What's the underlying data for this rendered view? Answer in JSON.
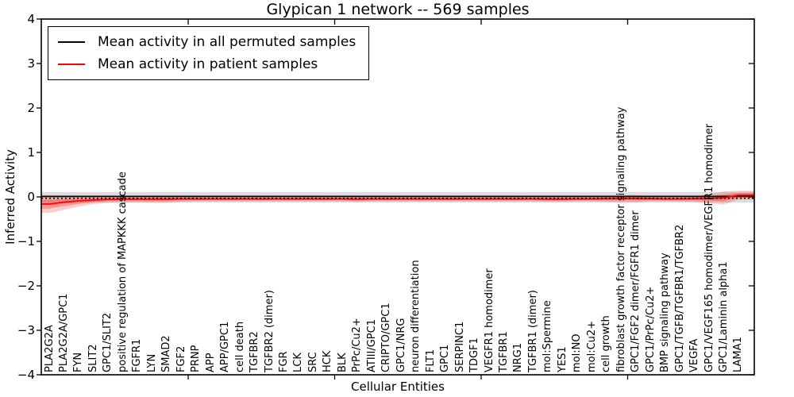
{
  "title": "Glypican 1 network -- 569 samples",
  "chart_data": {
    "type": "line",
    "title": "Glypican 1 network -- 569 samples",
    "xlabel": "Cellular Entities",
    "ylabel": "Inferred Activity",
    "ylim": [
      -4,
      4
    ],
    "yticks": [
      -4,
      -3,
      -2,
      -1,
      0,
      1,
      2,
      3,
      4
    ],
    "grid": false,
    "legend_position": "upper left",
    "categories": [
      "PLA2G2A",
      "PLA2G2A/GPC1",
      "FYN",
      "SLIT2",
      "GPC1/SLIT2",
      "positive regulation of MAPKKK cascade",
      "FGFR1",
      "LYN",
      "SMAD2",
      "FGF2",
      "PRNP",
      "APP",
      "APP/GPC1",
      "cell death",
      "TGFBR2",
      "TGFBR2 (dimer)",
      "FGR",
      "LCK",
      "SRC",
      "HCK",
      "BLK",
      "PrPc/Cu2+",
      "ATIII/GPC1",
      "CRIPTO/GPC1",
      "GPC1/NRG",
      "neuron differentiation",
      "FLT1",
      "GPC1",
      "SERPINC1",
      "TDGF1",
      "VEGFR1 homodimer",
      "TGFBR1",
      "NRG1",
      "TGFBR1 (dimer)",
      "mol:Spermine",
      "YES1",
      "mol:NO",
      "mol:Cu2+",
      "cell growth",
      "fibroblast growth factor receptor signaling pathway",
      "GPC1/FGF2 dimer/FGFR1 dimer",
      "GPC1/PrPc/Cu2+",
      "BMP signaling pathway",
      "GPC1/TGFB/TGFBR1/TGFBR2",
      "VEGFA",
      "GPC1/VEGF165 homodimer/VEGFR1 homodimer",
      "GPC1/Laminin alpha1",
      "LAMA1"
    ],
    "series": [
      {
        "name": "Mean activity in all permuted samples",
        "color": "#000000",
        "band_color": "rgba(0,0,0,0.13)",
        "values": [
          0.01,
          0.01,
          0.01,
          0.01,
          0.01,
          0.01,
          0.01,
          0.01,
          0.01,
          0.01,
          0.01,
          0.01,
          0.01,
          0.01,
          0.01,
          0.01,
          0.01,
          0.01,
          0.01,
          0.01,
          0.01,
          0.01,
          0.01,
          0.01,
          0.01,
          0.01,
          0.01,
          0.01,
          0.01,
          0.01,
          0.01,
          0.01,
          0.01,
          0.01,
          0.01,
          0.01,
          0.01,
          0.01,
          0.01,
          0.01,
          0.01,
          0.01,
          0.01,
          0.01,
          0.01,
          0.01,
          0.01,
          0.01
        ],
        "band_lower": [
          -0.13,
          -0.13,
          -0.13,
          -0.13,
          -0.13,
          -0.13,
          -0.13,
          -0.13,
          -0.13,
          -0.13,
          -0.13,
          -0.13,
          -0.13,
          -0.13,
          -0.13,
          -0.13,
          -0.13,
          -0.13,
          -0.13,
          -0.13,
          -0.13,
          -0.13,
          -0.13,
          -0.13,
          -0.13,
          -0.13,
          -0.13,
          -0.13,
          -0.13,
          -0.13,
          -0.13,
          -0.13,
          -0.13,
          -0.13,
          -0.13,
          -0.13,
          -0.13,
          -0.13,
          -0.13,
          -0.13,
          -0.13,
          -0.13,
          -0.13,
          -0.13,
          -0.13,
          -0.13,
          -0.13,
          -0.13
        ],
        "band_upper": [
          0.11,
          0.11,
          0.11,
          0.11,
          0.11,
          0.11,
          0.11,
          0.11,
          0.11,
          0.11,
          0.11,
          0.11,
          0.11,
          0.11,
          0.11,
          0.11,
          0.11,
          0.11,
          0.11,
          0.11,
          0.11,
          0.11,
          0.11,
          0.11,
          0.11,
          0.11,
          0.11,
          0.11,
          0.11,
          0.11,
          0.11,
          0.11,
          0.11,
          0.11,
          0.11,
          0.11,
          0.11,
          0.11,
          0.11,
          0.11,
          0.11,
          0.11,
          0.11,
          0.11,
          0.11,
          0.11,
          0.11,
          0.11
        ]
      },
      {
        "name": "Mean activity in patient samples",
        "color": "#ff0000",
        "band_color": "rgba(255,0,0,0.20)",
        "band_color_inner": "rgba(255,0,0,0.28)",
        "values": [
          -0.16,
          -0.12,
          -0.09,
          -0.07,
          -0.055,
          -0.05,
          -0.05,
          -0.05,
          -0.05,
          -0.045,
          -0.045,
          -0.045,
          -0.045,
          -0.045,
          -0.045,
          -0.045,
          -0.045,
          -0.045,
          -0.045,
          -0.045,
          -0.045,
          -0.05,
          -0.045,
          -0.045,
          -0.045,
          -0.045,
          -0.045,
          -0.045,
          -0.045,
          -0.045,
          -0.045,
          -0.045,
          -0.045,
          -0.045,
          -0.05,
          -0.05,
          -0.045,
          -0.045,
          -0.04,
          -0.035,
          -0.035,
          -0.04,
          -0.045,
          -0.045,
          -0.04,
          -0.035,
          -0.02,
          0.04
        ],
        "band_lower": [
          -0.36,
          -0.29,
          -0.22,
          -0.16,
          -0.13,
          -0.12,
          -0.12,
          -0.13,
          -0.13,
          -0.11,
          -0.1,
          -0.1,
          -0.1,
          -0.1,
          -0.1,
          -0.1,
          -0.1,
          -0.1,
          -0.1,
          -0.1,
          -0.1,
          -0.115,
          -0.1,
          -0.1,
          -0.1,
          -0.105,
          -0.1,
          -0.1,
          -0.1,
          -0.1,
          -0.1,
          -0.1,
          -0.1,
          -0.1,
          -0.11,
          -0.11,
          -0.1,
          -0.1,
          -0.11,
          -0.12,
          -0.12,
          -0.1,
          -0.1,
          -0.105,
          -0.11,
          -0.14,
          -0.17,
          -0.06
        ],
        "band_upper": [
          0.03,
          0.02,
          0.01,
          0.01,
          0.005,
          0.0,
          0.0,
          0.01,
          0.01,
          0.0,
          0.005,
          0.005,
          0.005,
          0.005,
          0.005,
          0.005,
          0.005,
          0.005,
          0.005,
          0.005,
          0.005,
          0.01,
          0.005,
          0.005,
          0.005,
          0.005,
          0.005,
          0.005,
          0.005,
          0.005,
          0.005,
          0.005,
          0.005,
          0.005,
          0.01,
          0.01,
          0.005,
          0.005,
          0.02,
          0.04,
          0.04,
          0.01,
          0.005,
          0.01,
          0.02,
          0.06,
          0.12,
          0.14
        ]
      }
    ],
    "zero_line": {
      "style": "dotted",
      "color": "#000000",
      "y": -0.03
    }
  },
  "legend": {
    "items": [
      {
        "label": "Mean activity in all permuted samples",
        "color": "#000000"
      },
      {
        "label": "Mean activity in patient samples",
        "color": "#ff0000"
      }
    ]
  }
}
